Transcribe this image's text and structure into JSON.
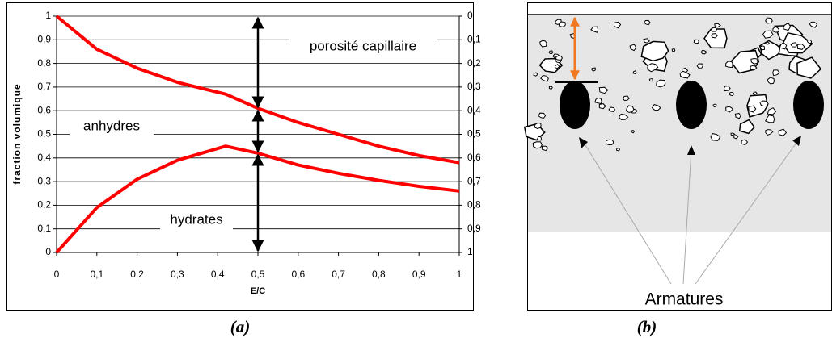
{
  "chart_data": {
    "type": "line",
    "x_label": "E/C",
    "y_label": "fraction volumique",
    "x": [
      0,
      0.1,
      0.2,
      0.3,
      0.42,
      0.5,
      0.6,
      0.7,
      0.8,
      0.9,
      1
    ],
    "series": [
      {
        "color": "#ff0000",
        "values": [
          1,
          0.86,
          0.78,
          0.72,
          0.67,
          0.61,
          0.55,
          0.5,
          0.45,
          0.41,
          0.38
        ]
      },
      {
        "color": "#ff0000",
        "values": [
          0,
          0.19,
          0.31,
          0.39,
          0.45,
          0.42,
          0.37,
          0.335,
          0.305,
          0.28,
          0.26
        ]
      }
    ],
    "xlim": [
      0,
      1
    ],
    "ylim": [
      0,
      1
    ],
    "y2lim": [
      1,
      0
    ],
    "xticks": [
      0,
      {
        "value": 0.1,
        "label": "0,1"
      },
      {
        "value": 0.2,
        "label": "0,2"
      },
      {
        "value": 0.3,
        "label": "0,3"
      },
      {
        "value": 0.4,
        "label": "0,4"
      },
      {
        "value": 0.5,
        "label": "0,5"
      },
      {
        "value": 0.6,
        "label": "0,6"
      },
      {
        "value": 0.7,
        "label": "0,7"
      },
      {
        "value": 0.8,
        "label": "0,8"
      },
      {
        "value": 0.9,
        "label": "0,9"
      },
      1
    ],
    "yticks": [
      0,
      {
        "value": 0.1,
        "label": "0,1"
      },
      {
        "value": 0.2,
        "label": "0,2"
      },
      {
        "value": 0.3,
        "label": "0,3"
      },
      {
        "value": 0.4,
        "label": "0,4"
      },
      {
        "value": 0.5,
        "label": "0,5"
      },
      {
        "value": 0.6,
        "label": "0,6"
      },
      {
        "value": 0.7,
        "label": "0,7"
      },
      {
        "value": 0.8,
        "label": "0,8"
      },
      {
        "value": 0.9,
        "label": "0,9"
      },
      1
    ],
    "y2ticks": [
      0,
      {
        "value": 0.1,
        "label": "0,1"
      },
      {
        "value": 0.2,
        "label": "0,2"
      },
      {
        "value": 0.3,
        "label": "0,3"
      },
      {
        "value": 0.4,
        "label": "0,4"
      },
      {
        "value": 0.5,
        "label": "0,5"
      },
      {
        "value": 0.6,
        "label": "0,6"
      },
      {
        "value": 0.7,
        "label": "0,7"
      },
      {
        "value": 0.8,
        "label": "0,8"
      },
      {
        "value": 0.9,
        "label": "0,9"
      },
      1
    ],
    "grid": true,
    "annotations": [
      "porosité capillaire",
      "anhydres",
      "hydrates"
    ],
    "caption": "(a)"
  },
  "diagram": {
    "label": "Armatures",
    "caption": "(b)"
  }
}
